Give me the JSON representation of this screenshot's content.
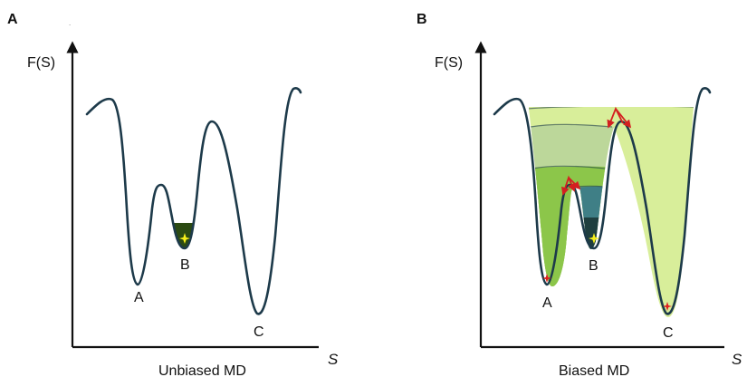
{
  "colors": {
    "curve": "#1d3a4a",
    "fill_light_yellow_green": "#d8ee9a",
    "fill_sage": "#bcd79a",
    "fill_green": "#8cc64a",
    "fill_teal": "#3f7f86",
    "fill_dark_teal": "#1f3f3f",
    "fill_dark_green": "#2b4a12",
    "marker_yellow": "#f7ef1a",
    "marker_red": "#e02020",
    "arrow_red": "#d42020"
  },
  "panel_a": {
    "letter": "A",
    "y_axis_label": "F(S)",
    "x_axis_label": "S",
    "caption": "Unbiased MD",
    "well_labels": {
      "a": "A",
      "b": "B",
      "c": "C"
    }
  },
  "panel_b": {
    "letter": "B",
    "y_axis_label": "F(S)",
    "x_axis_label": "S",
    "caption": "Biased MD",
    "well_labels": {
      "a": "A",
      "b": "B",
      "c": "C"
    }
  }
}
